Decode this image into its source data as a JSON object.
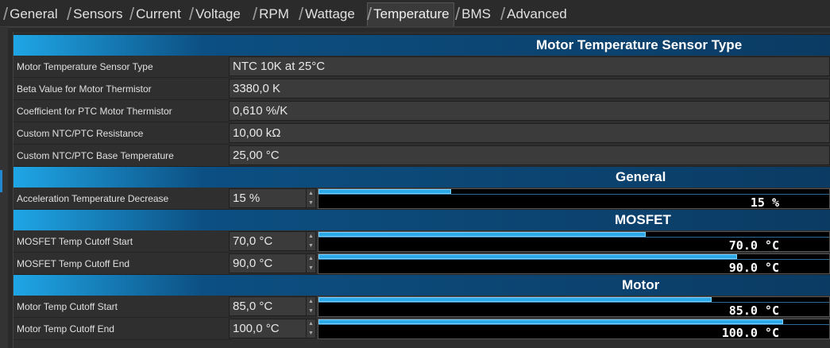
{
  "tabs": [
    {
      "label": "General"
    },
    {
      "label": "Sensors"
    },
    {
      "label": "Current"
    },
    {
      "label": "Voltage"
    },
    {
      "label": "RPM"
    },
    {
      "label": "Wattage"
    },
    {
      "label": "Temperature"
    },
    {
      "label": "BMS"
    },
    {
      "label": "Advanced"
    }
  ],
  "active_tab": "Temperature",
  "sections": {
    "sensor_type": {
      "title": "Motor Temperature Sensor Type",
      "rows": [
        {
          "label": "Motor Temperature Sensor Type",
          "value": "NTC 10K at 25°C"
        },
        {
          "label": "Beta Value for Motor Thermistor",
          "value": "3380,0 K"
        },
        {
          "label": "Coefficient for PTC Motor Thermistor",
          "value": "0,610 %/K"
        },
        {
          "label": "Custom NTC/PTC Resistance",
          "value": "10,00 kΩ"
        },
        {
          "label": "Custom NTC/PTC Base Temperature",
          "value": "25,00 °C"
        }
      ]
    },
    "general": {
      "title": "General",
      "rows": [
        {
          "label": "Acceleration Temperature Decrease",
          "value": "15 %",
          "bar_text": "15 %",
          "fill_fraction": 0.26
        }
      ]
    },
    "mosfet": {
      "title": "MOSFET",
      "rows": [
        {
          "label": "MOSFET Temp Cutoff Start",
          "value": "70,0 °C",
          "bar_text": "70.0 °C",
          "fill_fraction": 0.64
        },
        {
          "label": "MOSFET Temp Cutoff End",
          "value": "90,0 °C",
          "bar_text": "90.0 °C",
          "fill_fraction": 0.82
        }
      ]
    },
    "motor": {
      "title": "Motor",
      "rows": [
        {
          "label": "Motor Temp Cutoff Start",
          "value": "85,0 °C",
          "bar_text": "85.0 °C",
          "fill_fraction": 0.77
        },
        {
          "label": "Motor Temp Cutoff End",
          "value": "100,0 °C",
          "bar_text": "100.0 °C",
          "fill_fraction": 0.91
        }
      ]
    }
  },
  "spin_up_icon": "▲",
  "spin_down_icon": "▼"
}
